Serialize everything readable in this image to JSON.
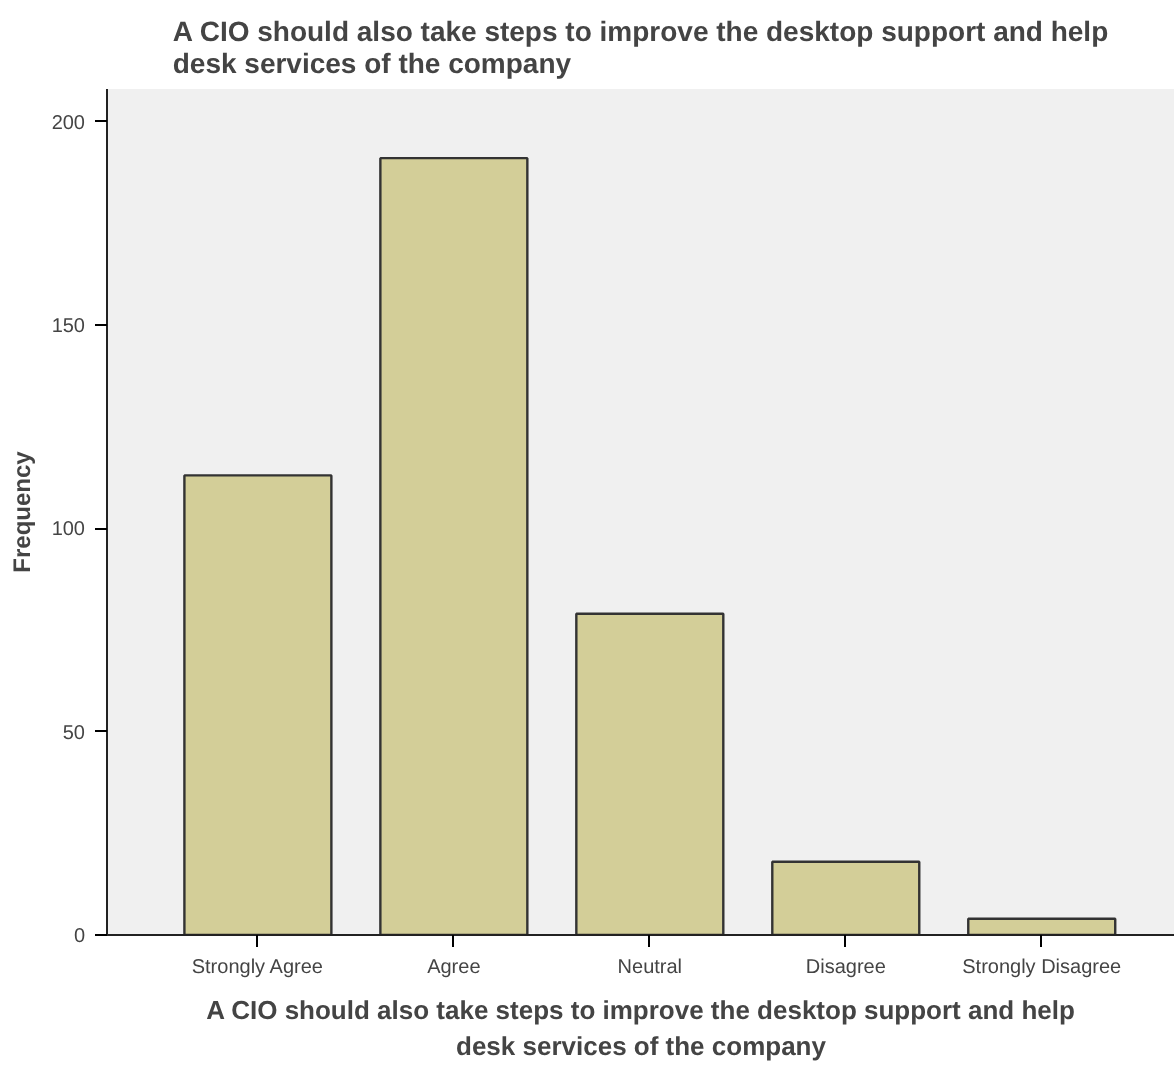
{
  "chart_data": {
    "type": "bar",
    "title": "A CIO should also take steps to improve the desktop support and help desk services of the company",
    "xlabel": "A CIO should also take steps to improve the desktop support and help desk services of the company",
    "ylabel": "Frequency",
    "categories": [
      "Strongly Agree",
      "Agree",
      "Neutral",
      "Disagree",
      "Strongly Disagree"
    ],
    "values": [
      113,
      191,
      79,
      18,
      4
    ],
    "color": "#d3ce98",
    "ylim": [
      0,
      208
    ],
    "yticks": [
      0,
      50,
      100,
      150,
      200
    ],
    "grid": false
  }
}
